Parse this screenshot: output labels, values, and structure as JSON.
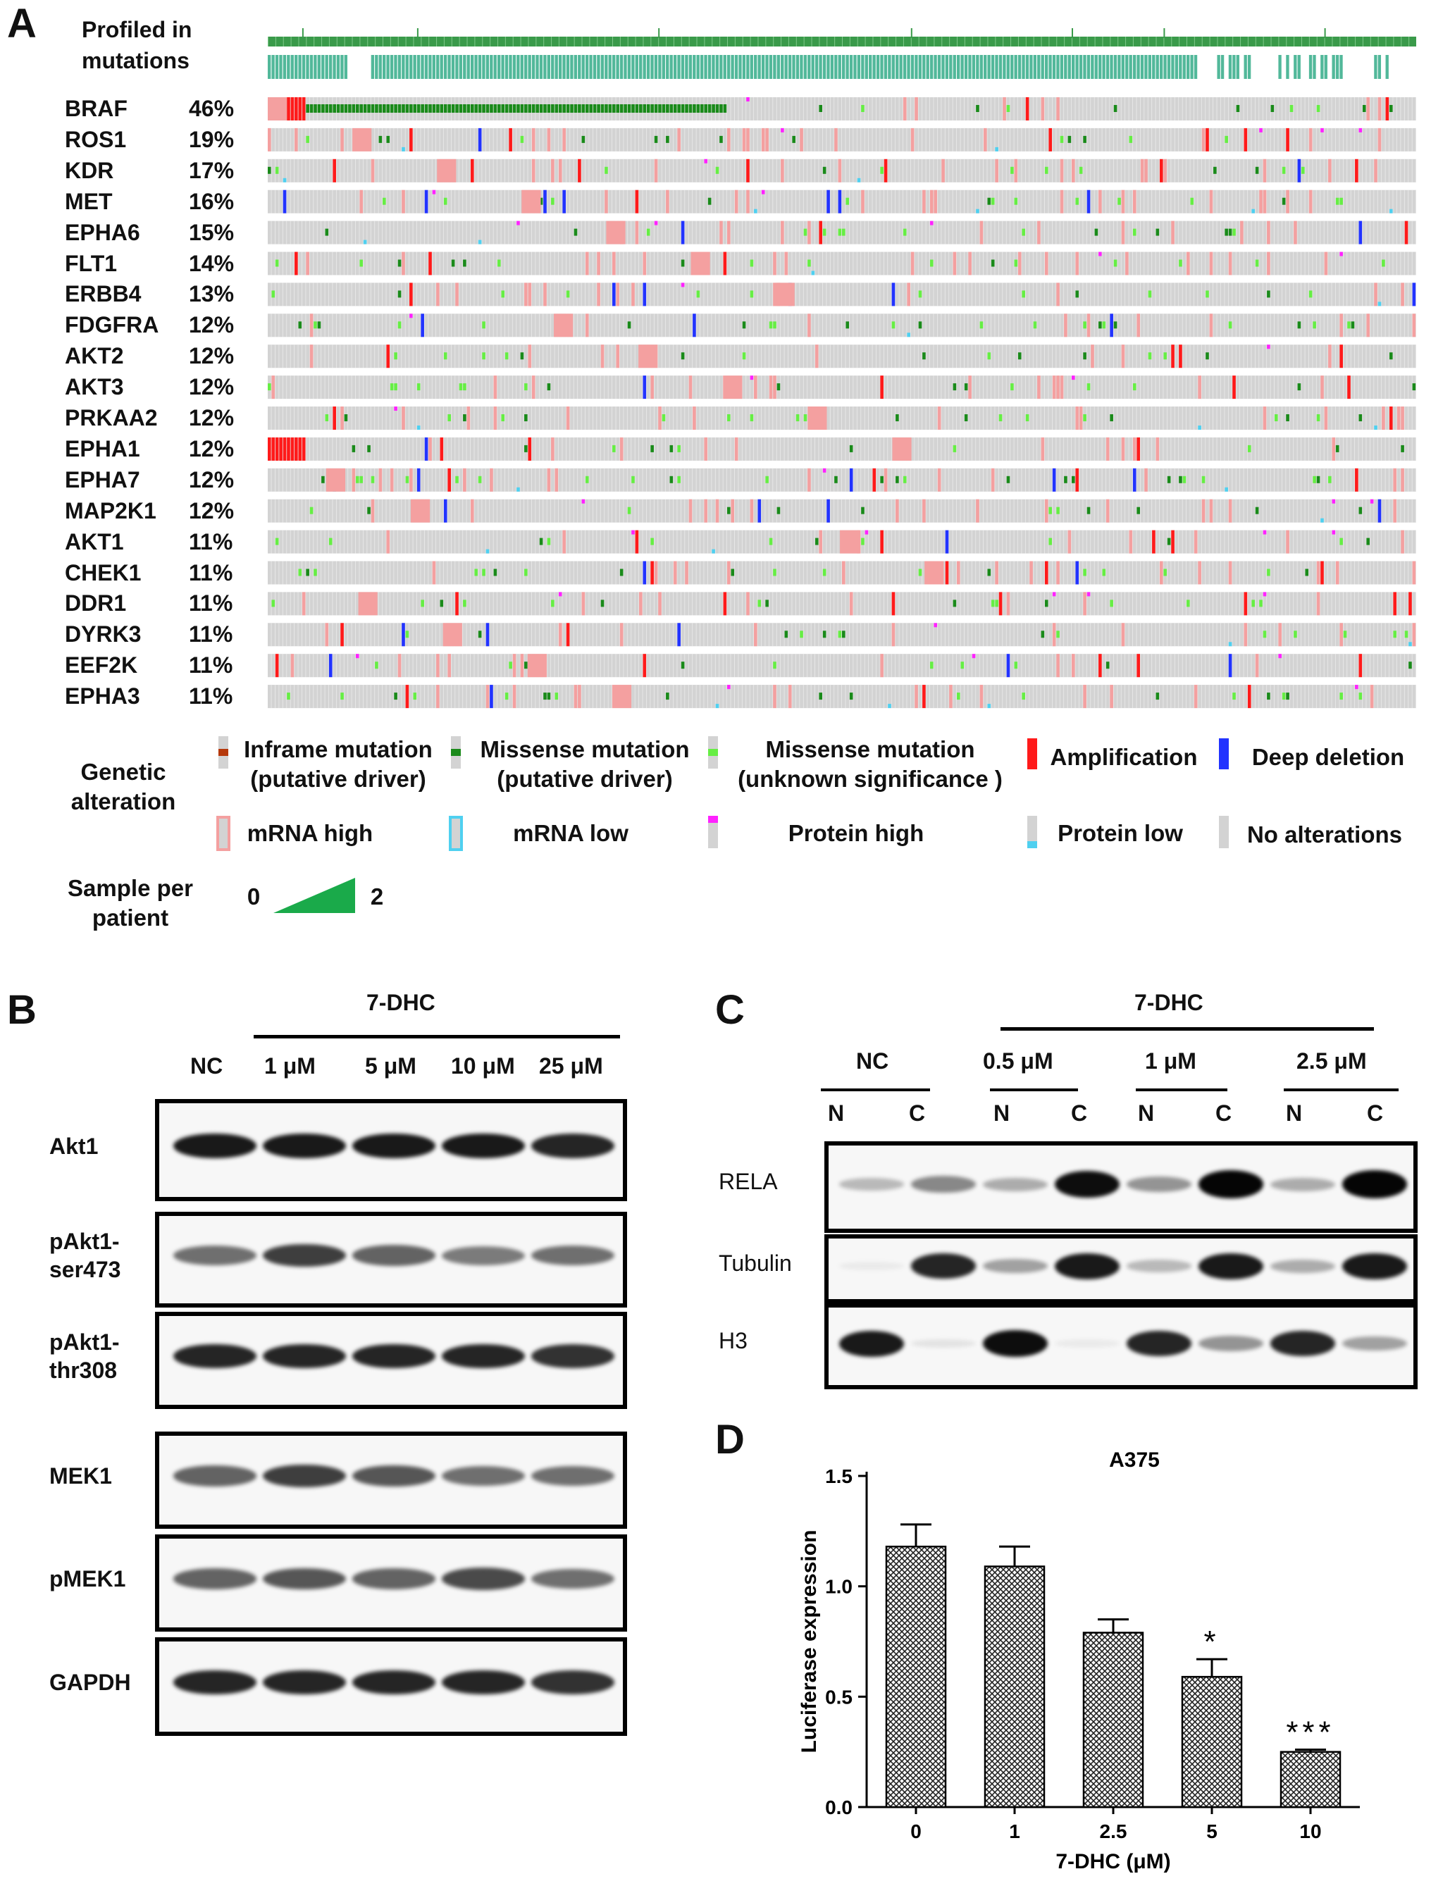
{
  "panelA": {
    "letter": "A",
    "profiled_label": [
      "Profiled in",
      "mutations"
    ],
    "genes": [
      {
        "name": "BRAF",
        "pct": "46%"
      },
      {
        "name": "ROS1",
        "pct": "19%"
      },
      {
        "name": "KDR",
        "pct": "17%"
      },
      {
        "name": "MET",
        "pct": "16%"
      },
      {
        "name": "EPHA6",
        "pct": "15%"
      },
      {
        "name": "FLT1",
        "pct": "14%"
      },
      {
        "name": "ERBB4",
        "pct": "13%"
      },
      {
        "name": "FDGFRA",
        "pct": "12%"
      },
      {
        "name": "AKT2",
        "pct": "12%"
      },
      {
        "name": "AKT3",
        "pct": "12%"
      },
      {
        "name": "PRKAA2",
        "pct": "12%"
      },
      {
        "name": "EPHA1",
        "pct": "12%"
      },
      {
        "name": "EPHA7",
        "pct": "12%"
      },
      {
        "name": "MAP2K1",
        "pct": "12%"
      },
      {
        "name": "AKT1",
        "pct": "11%"
      },
      {
        "name": "CHEK1",
        "pct": "11%"
      },
      {
        "name": "DDR1",
        "pct": "11%"
      },
      {
        "name": "DYRK3",
        "pct": "11%"
      },
      {
        "name": "EEF2K",
        "pct": "11%"
      },
      {
        "name": "EPHA3",
        "pct": "11%"
      }
    ],
    "legend": {
      "title": [
        "Genetic",
        "alteration"
      ],
      "inframe": [
        "Inframe mutation",
        "(putative driver)"
      ],
      "missense_driver": [
        "Missense mutation",
        "(putative driver)"
      ],
      "missense_unknown": [
        "Missense mutation",
        "(unknown significance )"
      ],
      "amplification": "Amplification",
      "deep_deletion": "Deep deletion",
      "mrna_high": "mRNA high",
      "mrna_low": "mRNA low",
      "protein_high": "Protein high",
      "protein_low": "Protein low",
      "no_alterations": "No alterations",
      "sample_title": [
        "Sample per",
        "patient"
      ],
      "sample_min": "0",
      "sample_max": "2"
    },
    "colors": {
      "background_cell": "#d3d3d3",
      "amplification": "#ff1a1a",
      "deep_deletion": "#2233ff",
      "mrna_high": "#f4a0a0",
      "mrna_low": "#4fd0f0",
      "protein_high": "#ff22ff",
      "missense_driver": "#1a8a1a",
      "missense_unknown": "#66ee44",
      "inframe": "#b5380a",
      "profiled_dark": "#3a9a4a",
      "profiled_teal": "#52b89a",
      "sample_gradient": "#1aaa4a"
    }
  },
  "panelB": {
    "letter": "B",
    "treatment": "7-DHC",
    "lanes": [
      "NC",
      "1 μM",
      "5 μM",
      "10 μM",
      "25 μM"
    ],
    "blots": [
      {
        "label": [
          "Akt1"
        ]
      },
      {
        "label": [
          "pAkt1-",
          "ser473"
        ]
      },
      {
        "label": [
          "pAkt1-",
          "thr308"
        ]
      },
      {
        "label": [
          "MEK1"
        ]
      },
      {
        "label": [
          "pMEK1"
        ]
      },
      {
        "label": [
          "GAPDH"
        ]
      }
    ]
  },
  "panelC": {
    "letter": "C",
    "treatment": "7-DHC",
    "groups": [
      "NC",
      "0.5 μM",
      "1 μM",
      "2.5 μM"
    ],
    "fractions": [
      "N",
      "C",
      "N",
      "C",
      "N",
      "C",
      "N",
      "C"
    ],
    "blots": [
      {
        "label": "RELA"
      },
      {
        "label": "Tubulin"
      },
      {
        "label": "H3"
      }
    ]
  },
  "chart_data": {
    "type": "bar",
    "panel_letter": "D",
    "title": "A375",
    "xlabel": "7-DHC (μM)",
    "ylabel": "Luciferase expression",
    "categories": [
      "0",
      "1",
      "2.5",
      "5",
      "10"
    ],
    "values": [
      1.18,
      1.09,
      0.79,
      0.59,
      0.25
    ],
    "errors": [
      0.1,
      0.09,
      0.06,
      0.08,
      0.01
    ],
    "significance": [
      "",
      "",
      "",
      "*",
      "***"
    ],
    "ylim": [
      0.0,
      1.5
    ],
    "yticks": [
      "0.0",
      "0.5",
      "1.0",
      "1.5"
    ],
    "bar_pattern": "crosshatch",
    "grid": false
  }
}
